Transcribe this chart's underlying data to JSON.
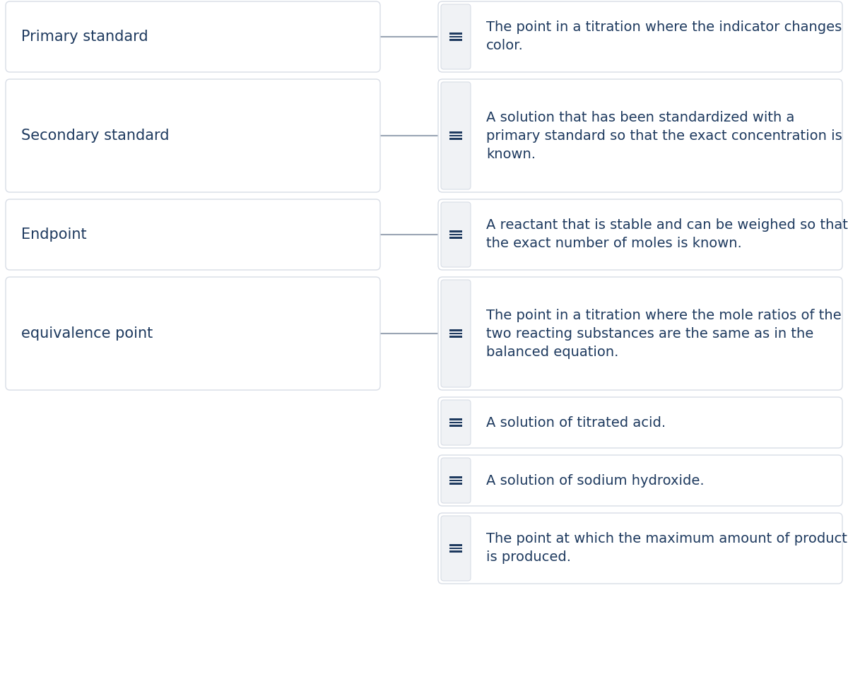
{
  "background_color": "#ffffff",
  "card_bg": "#ffffff",
  "card_border": "#d8dde6",
  "connector_bg": "#f0f2f5",
  "text_color": "#1e3a5f",
  "line_color": "#9aa5b4",
  "hamburger_color": "#1e3a5f",
  "left_labels": [
    "Primary standard",
    "Secondary standard",
    "Endpoint",
    "equivalence point"
  ],
  "right_texts": [
    "The point in a titration where the indicator changes\ncolor.",
    "A solution that has been standardized with a\nprimary standard so that the exact concentration is\nknown.",
    "A reactant that is stable and can be weighed so that\nthe exact number of moles is known.",
    "The point in a titration where the mole ratios of the\ntwo reacting substances are the same as in the\nbalanced equation.",
    "A solution of titrated acid.",
    "A solution of sodium hydroxide.",
    "The point at which the maximum amount of product\nis produced."
  ],
  "font_size_label": 15,
  "font_size_text": 14
}
